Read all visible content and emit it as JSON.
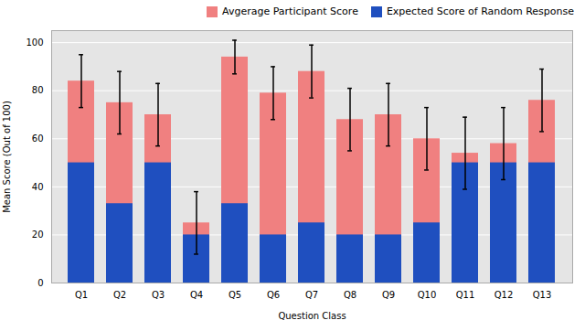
{
  "chart_data": {
    "type": "bar",
    "xlabel": "Question Class",
    "ylabel": "Mean Score (Out of 100)",
    "categories": [
      "Q1",
      "Q2",
      "Q3",
      "Q4",
      "Q5",
      "Q6",
      "Q7",
      "Q8",
      "Q9",
      "Q10",
      "Q11",
      "Q12",
      "Q13"
    ],
    "series": [
      {
        "name": "Avgerage Participant Score",
        "color": "#f08080",
        "values": [
          84,
          75,
          70,
          25,
          94,
          79,
          88,
          68,
          70,
          60,
          54,
          58,
          76
        ],
        "error_bars": [
          11,
          13,
          13,
          13,
          7,
          11,
          11,
          13,
          13,
          13,
          15,
          15,
          13
        ]
      },
      {
        "name": "Expected Score of Random Response",
        "color": "#1f4fbf",
        "values": [
          50,
          33,
          50,
          20,
          33,
          20,
          25,
          20,
          20,
          25,
          50,
          50,
          50
        ]
      }
    ],
    "stacked": false,
    "ylim": [
      0,
      105
    ],
    "yticks": [
      0,
      20,
      40,
      60,
      80,
      100
    ],
    "grid": true,
    "legend": "upper right"
  }
}
